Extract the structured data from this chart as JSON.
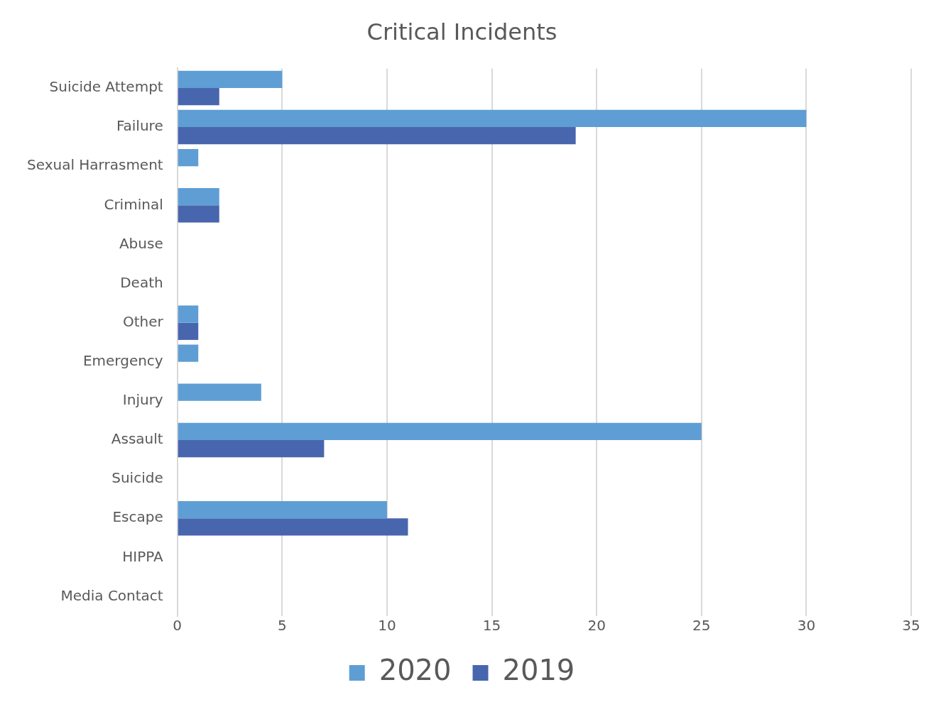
{
  "chart_data": {
    "type": "bar",
    "orientation": "horizontal",
    "title": "Critical Incidents",
    "categories": [
      "Suicide Attempt",
      "Failure",
      "Sexual Harrasment",
      "Criminal",
      "Abuse",
      "Death",
      "Other",
      "Emergency",
      "Injury",
      "Assault",
      "Suicide",
      "Escape",
      "HIPPA",
      "Media Contact"
    ],
    "series": [
      {
        "name": "2020",
        "color": "#5e9ed4",
        "values": [
          5,
          30,
          1,
          2,
          null,
          null,
          1,
          1,
          4,
          25,
          null,
          10,
          null,
          null
        ]
      },
      {
        "name": "2019",
        "color": "#4866ae",
        "values": [
          2,
          19,
          null,
          2,
          null,
          null,
          1,
          null,
          null,
          7,
          null,
          11,
          null,
          null
        ]
      }
    ],
    "xlim": [
      0,
      35
    ],
    "xticks": [
      0,
      5,
      10,
      15,
      20,
      25,
      30,
      35
    ],
    "grid": "x",
    "legend": "bottom"
  }
}
